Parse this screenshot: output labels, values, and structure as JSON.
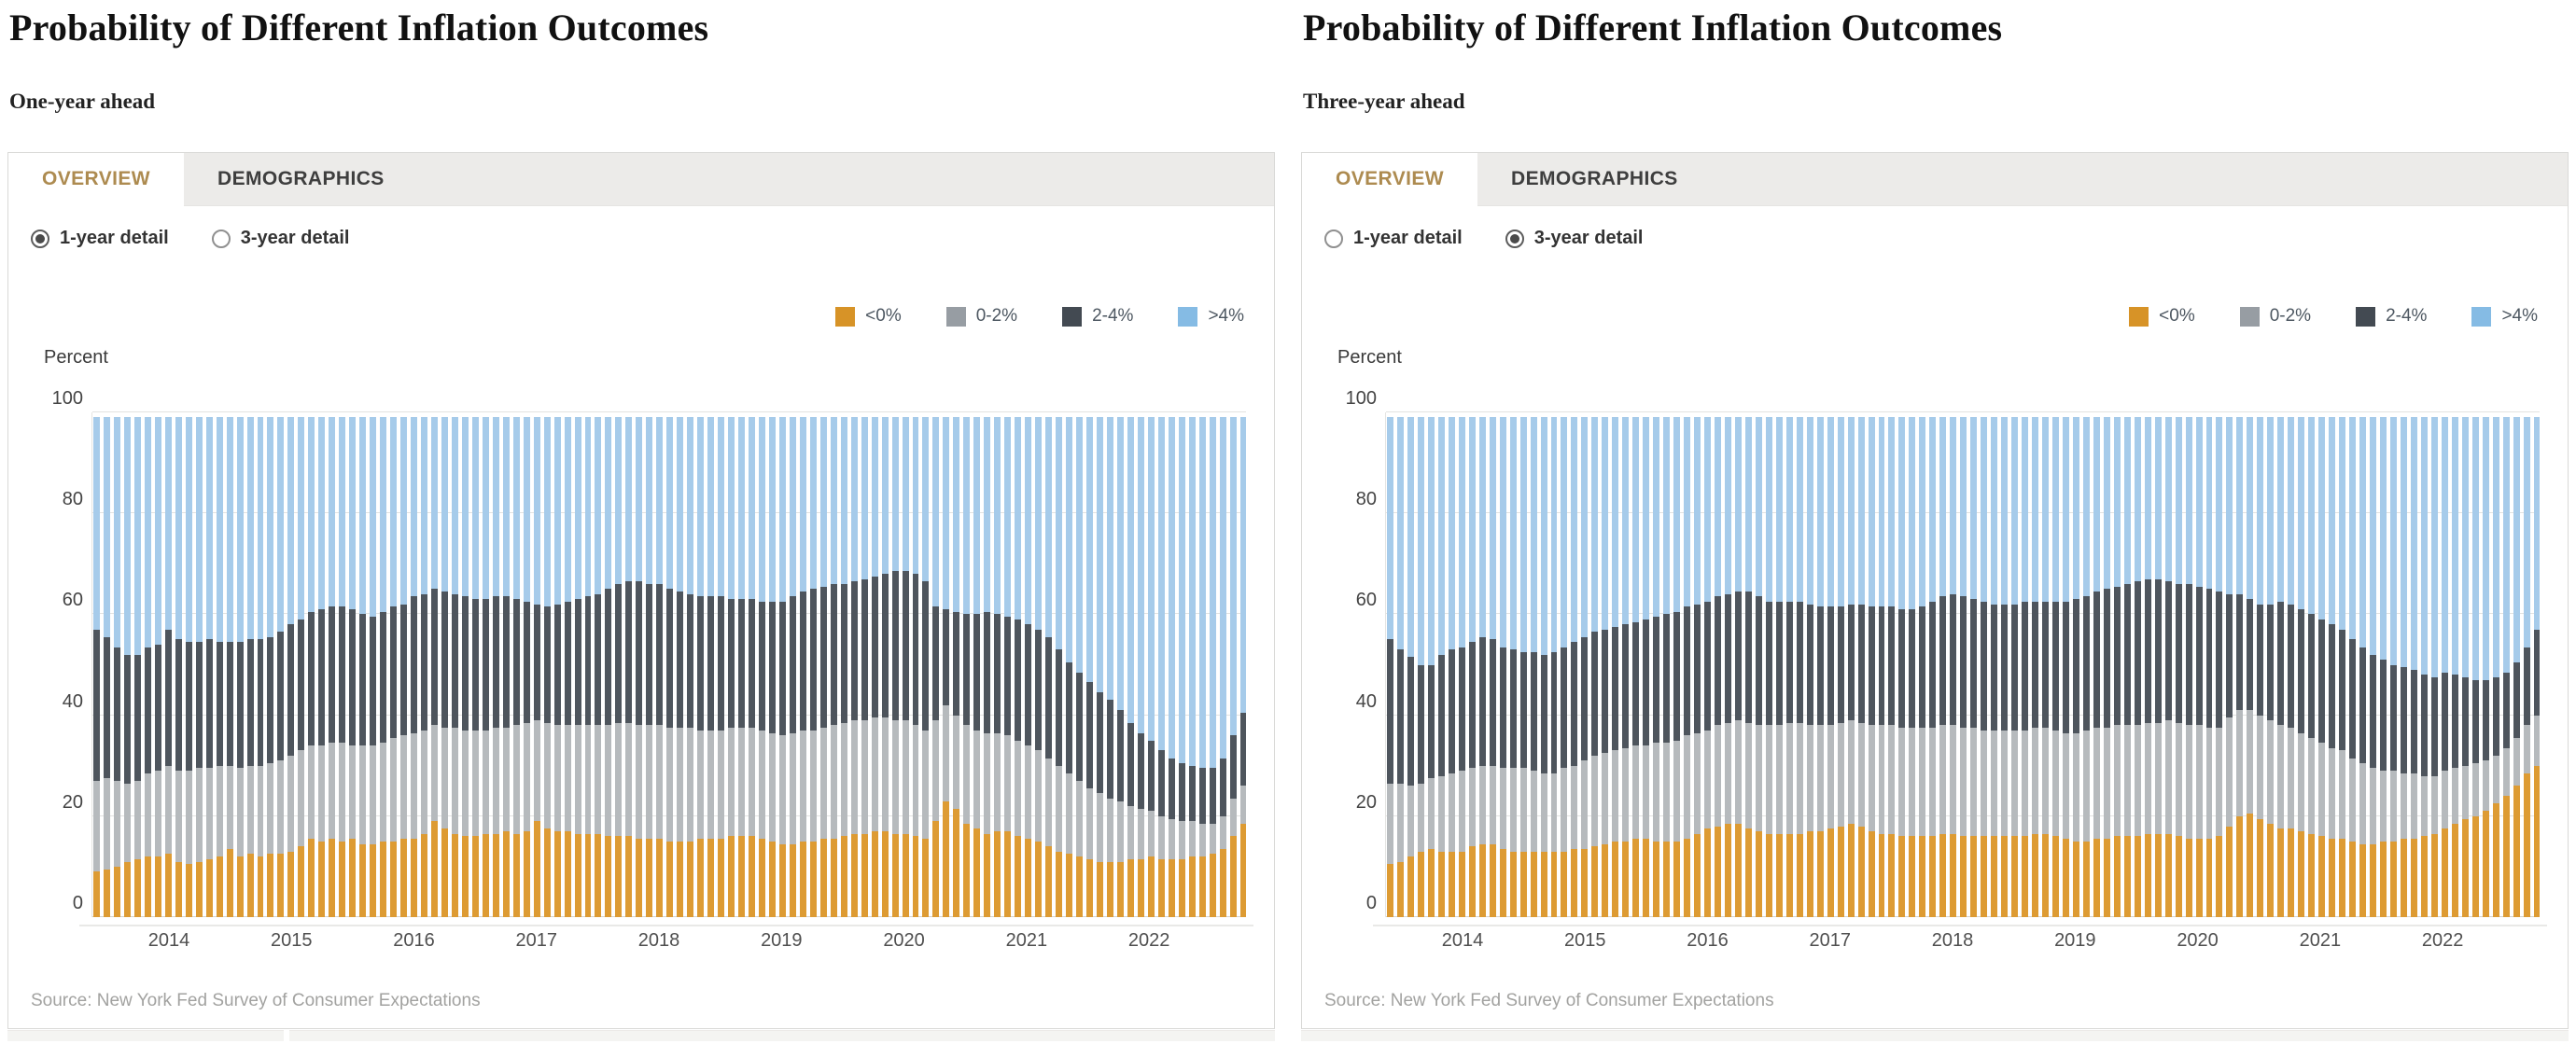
{
  "colors": {
    "tab_active_text": "#ad8b50",
    "panel_border": "#d9d9d7",
    "bars": [
      "#dd9b33",
      "#b6babd",
      "#4e555d",
      "#a6cbea"
    ],
    "legend_swatches": [
      "#d79327",
      "#979da3",
      "#434a52",
      "#85bbe4"
    ]
  },
  "legend": {
    "items": [
      {
        "label": "<0%",
        "color": "#d79327"
      },
      {
        "label": "0-2%",
        "color": "#979da3"
      },
      {
        "label": "2-4%",
        "color": "#434a52"
      },
      {
        "label": ">4%",
        "color": "#85bbe4"
      }
    ]
  },
  "panels": [
    {
      "title": "Probability of Different Inflation Outcomes",
      "subtitle": "One-year ahead",
      "tabs": [
        {
          "label": "OVERVIEW",
          "active": true
        },
        {
          "label": "DEMOGRAPHICS",
          "active": false
        }
      ],
      "radios": [
        {
          "label": "1-year detail",
          "selected": true
        },
        {
          "label": "3-year detail",
          "selected": false
        }
      ],
      "unit_label": "Percent",
      "source": "Source: New York Fed Survey of Consumer Expectations"
    },
    {
      "title": "Probability of Different Inflation Outcomes",
      "subtitle": "Three-year ahead",
      "tabs": [
        {
          "label": "OVERVIEW",
          "active": true
        },
        {
          "label": "DEMOGRAPHICS",
          "active": false
        }
      ],
      "radios": [
        {
          "label": "1-year detail",
          "selected": false
        },
        {
          "label": "3-year detail",
          "selected": true
        }
      ],
      "unit_label": "Percent",
      "source": "Source: New York Fed Survey of Consumer Expectations"
    }
  ],
  "chart_data": [
    {
      "type": "bar",
      "stacked": true,
      "title": "Probability of Different Inflation Outcomes — One-year ahead",
      "ylabel": "Percent",
      "ylim": [
        0,
        100
      ],
      "yticks": [
        0,
        20,
        40,
        60,
        80,
        100
      ],
      "grid": true,
      "legend_position": "top-right",
      "x_start": "2013-06",
      "x_end": "2022-10",
      "n_months": 113,
      "x_tick_years": [
        2014,
        2015,
        2016,
        2017,
        2018,
        2019,
        2020,
        2021,
        2022
      ],
      "series_names": [
        "<0%",
        "0-2%",
        "2-4%",
        ">4%"
      ],
      "bar_total": 99,
      "note": "cum_lt0 = top of '<0%' segment; cum_0_2 = cumulative top of '0-2%'; cum_2_4 = cumulative top of '2-4%'; '>4%' fills up to bar_total",
      "cum_lt0": [
        9,
        9.5,
        10,
        11,
        11.5,
        12,
        12,
        12.5,
        11,
        10.5,
        11,
        11.5,
        12,
        13.5,
        12,
        12.5,
        12,
        12.5,
        12.5,
        13,
        14,
        15.5,
        15,
        15.5,
        15,
        15.5,
        14.5,
        14.5,
        15,
        15,
        15.5,
        15.5,
        16.5,
        19,
        17.5,
        16.5,
        16,
        16,
        16.5,
        16.5,
        17,
        16.5,
        17,
        19,
        17.5,
        17,
        17,
        16.5,
        16.5,
        16.5,
        16,
        16,
        16,
        15.5,
        15.5,
        15.5,
        15,
        15,
        15,
        15.5,
        15.5,
        15.5,
        16,
        16,
        16,
        15.5,
        15,
        14.5,
        14.5,
        15,
        15,
        15.5,
        15.5,
        16,
        16.5,
        16.5,
        17,
        17,
        16.5,
        16.5,
        16,
        15.5,
        19,
        23,
        21.5,
        18.5,
        17.5,
        16.5,
        17,
        17,
        16,
        15.5,
        15,
        14,
        13,
        12.5,
        12,
        11.5,
        11,
        11,
        11,
        11.5,
        11.5,
        12,
        11.5,
        11.5,
        11.5,
        12,
        12,
        12.5,
        13.5,
        16,
        18.5
      ],
      "cum_0_2": [
        27,
        27.5,
        27,
        26.5,
        27,
        28.5,
        29,
        30,
        29,
        29,
        29.5,
        29.5,
        30,
        30,
        29.5,
        30,
        30,
        30.5,
        31,
        32,
        33,
        34,
        34,
        34.5,
        34.5,
        34,
        34,
        34,
        34.5,
        35.5,
        36,
        36.5,
        37,
        38,
        37.5,
        37.5,
        37,
        37,
        37,
        37.5,
        37.5,
        38,
        38.5,
        39,
        38.5,
        38,
        38,
        38,
        38,
        38,
        38,
        38.5,
        38.5,
        38,
        38,
        38,
        37.5,
        37.5,
        37.5,
        37,
        37,
        37,
        37.5,
        37.5,
        37.5,
        37,
        36.5,
        36,
        36.5,
        37,
        37,
        37.5,
        38,
        38.5,
        39,
        39,
        39.5,
        39.5,
        39,
        39,
        38,
        37,
        39,
        42,
        40,
        38,
        37,
        36.5,
        36.5,
        36,
        35,
        34,
        33,
        31.5,
        30,
        28.5,
        27,
        25.5,
        24.5,
        23.5,
        23,
        22,
        21.5,
        21,
        20,
        19.5,
        19,
        19,
        18.5,
        18.5,
        20,
        23.5,
        26
      ],
      "cum_2_4": [
        57,
        55.5,
        53.5,
        52,
        52,
        53.5,
        54,
        57,
        55,
        54.5,
        54.5,
        55,
        54.5,
        54.5,
        54.5,
        55,
        55,
        55.5,
        56.5,
        58,
        59,
        60.5,
        61,
        61.5,
        61.5,
        61,
        60,
        59.5,
        60.5,
        61.5,
        62,
        63.5,
        64,
        65,
        64.5,
        64,
        63.5,
        63,
        63,
        63.5,
        63.5,
        63,
        62.5,
        62,
        61.5,
        62,
        62.5,
        63,
        63.5,
        64,
        65,
        66,
        66.5,
        66.5,
        66,
        66,
        65,
        64.5,
        64,
        63.5,
        63.5,
        63.5,
        63,
        63,
        63,
        62.5,
        62.5,
        62.5,
        63.5,
        64.5,
        65,
        65.5,
        66,
        66,
        66.5,
        67,
        67.5,
        68,
        68.5,
        68.5,
        68,
        66.5,
        61.5,
        61,
        60.5,
        60,
        60,
        60.5,
        60,
        59.5,
        59,
        58,
        57,
        55.5,
        53,
        50.5,
        48.5,
        46.5,
        44.5,
        43,
        41,
        38.5,
        36.5,
        35,
        33,
        31.5,
        30.5,
        30,
        29.5,
        29.5,
        31.5,
        36,
        40.5
      ]
    },
    {
      "type": "bar",
      "stacked": true,
      "title": "Probability of Different Inflation Outcomes — Three-year ahead",
      "ylabel": "Percent",
      "ylim": [
        0,
        100
      ],
      "yticks": [
        0,
        20,
        40,
        60,
        80,
        100
      ],
      "grid": true,
      "legend_position": "top-right",
      "x_start": "2013-06",
      "x_end": "2022-10",
      "n_months": 113,
      "x_tick_years": [
        2014,
        2015,
        2016,
        2017,
        2018,
        2019,
        2020,
        2021,
        2022
      ],
      "series_names": [
        "<0%",
        "0-2%",
        "2-4%",
        ">4%"
      ],
      "bar_total": 99,
      "note": "cum_lt0 = top of '<0%' segment; cum_0_2 = cumulative top of '0-2%'; cum_2_4 = cumulative top of '2-4%'; '>4%' fills up to bar_total",
      "cum_lt0": [
        10.5,
        11,
        12,
        13,
        13.5,
        13,
        13,
        13,
        14,
        14.5,
        14.5,
        13.5,
        13,
        13,
        13,
        13,
        13,
        13,
        13.5,
        13.5,
        14,
        14.5,
        15,
        15,
        15.5,
        15.5,
        15,
        15,
        15,
        15.5,
        16.5,
        17.5,
        18,
        18.5,
        18.5,
        17.5,
        17,
        16.5,
        16.5,
        16.5,
        16.5,
        17,
        17,
        17.5,
        18,
        18.5,
        18,
        17,
        16.5,
        16.5,
        16,
        16,
        16,
        16,
        16.5,
        16.5,
        16,
        16,
        16,
        16,
        16,
        16,
        16,
        16.5,
        16.5,
        16,
        15.5,
        15,
        15,
        15.5,
        15.5,
        16,
        16,
        16,
        16.5,
        16.5,
        16.5,
        16,
        15.5,
        15.5,
        15.5,
        16,
        18,
        20,
        20.5,
        19.5,
        18.5,
        17.5,
        17.5,
        17,
        16.5,
        16,
        15.5,
        15.5,
        15,
        14.5,
        14.5,
        15,
        15,
        15.5,
        15.5,
        16,
        16.5,
        17.5,
        18.5,
        19.5,
        20,
        21,
        22.5,
        24,
        26,
        28.5,
        30
      ],
      "cum_0_2": [
        26.5,
        26.5,
        26,
        26.5,
        27.5,
        28,
        28.5,
        29,
        29.5,
        30,
        30,
        29.5,
        29.5,
        29.5,
        29,
        28.5,
        28.5,
        29.5,
        30,
        31,
        32,
        32.5,
        33,
        33.5,
        34,
        34,
        34.5,
        34.5,
        35,
        36,
        36.5,
        37,
        38,
        38.5,
        39,
        38.5,
        38,
        38,
        38,
        38.5,
        38.5,
        38,
        38,
        38,
        38.5,
        39,
        38.5,
        38,
        38,
        38,
        37.5,
        37.5,
        37.5,
        37.5,
        38,
        38,
        37.5,
        37.5,
        37,
        37,
        37,
        37,
        37,
        37.5,
        37.5,
        37,
        36.5,
        36.5,
        37,
        37.5,
        37.5,
        38,
        38,
        38,
        38.5,
        38.5,
        39,
        38.5,
        38,
        38,
        37.5,
        37.5,
        39.5,
        41,
        41,
        40,
        39,
        38,
        37.5,
        36.5,
        35.5,
        34.5,
        33.5,
        33,
        31.5,
        30.5,
        29.5,
        29,
        29,
        28.5,
        28.5,
        28,
        28,
        29,
        29.5,
        30,
        30.5,
        31,
        32,
        33.5,
        35.5,
        38,
        40
      ],
      "cum_2_4": [
        55,
        53,
        51.5,
        50,
        50,
        52,
        53,
        53.5,
        54.5,
        55.5,
        55,
        53.5,
        53,
        52.5,
        52.5,
        52,
        52.5,
        53.5,
        54.5,
        55.5,
        56.5,
        57,
        57.5,
        58,
        58.5,
        59,
        59.5,
        60,
        60.5,
        61.5,
        62,
        62.5,
        63.5,
        64,
        64.5,
        64.5,
        63.5,
        62.5,
        62.5,
        62.5,
        62.5,
        62,
        61.5,
        61.5,
        61.5,
        62,
        62,
        61.5,
        61.5,
        61.5,
        61,
        61,
        61.5,
        62.5,
        63.5,
        64,
        63.5,
        63,
        62.5,
        62,
        62,
        62,
        62.5,
        62.5,
        62.5,
        62.5,
        62.5,
        63,
        63.5,
        64.5,
        65,
        65.5,
        66,
        66.5,
        67,
        67,
        66.5,
        66,
        66,
        65.5,
        65,
        64.5,
        64,
        64,
        63,
        62,
        62,
        62.5,
        62,
        61,
        60,
        59,
        58,
        57,
        55,
        53.5,
        52,
        51,
        50,
        49.5,
        49,
        48,
        47.5,
        48.5,
        48,
        47.5,
        47,
        47,
        47.5,
        48.5,
        50.5,
        53.5,
        57
      ]
    }
  ]
}
